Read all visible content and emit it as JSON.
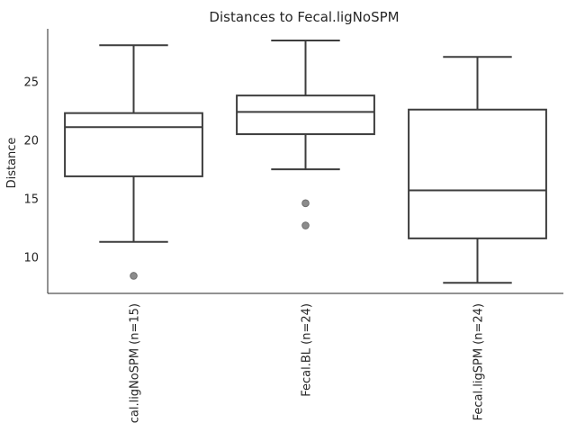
{
  "chart_data": {
    "type": "box",
    "title": "Distances to Fecal.ligNoSPM",
    "xlabel": "",
    "ylabel": "Distance",
    "ylim": [
      6.9,
      29.5
    ],
    "y_ticks": [
      10,
      15,
      20,
      25
    ],
    "grid": false,
    "categories": [
      "cal.ligNoSPM (n=15)",
      "Fecal.BL (n=24)",
      "Fecal.ligSPM (n=24)"
    ],
    "boxes": [
      {
        "whisker_low": 11.3,
        "q1": 16.9,
        "median": 21.1,
        "q3": 22.3,
        "whisker_high": 28.1,
        "outliers": [
          8.4
        ]
      },
      {
        "whisker_low": 17.5,
        "q1": 20.5,
        "median": 22.4,
        "q3": 23.8,
        "whisker_high": 28.5,
        "outliers": [
          14.6,
          12.7
        ]
      },
      {
        "whisker_low": 7.8,
        "q1": 11.6,
        "median": 15.7,
        "q3": 22.6,
        "whisker_high": 27.1,
        "outliers": []
      }
    ]
  }
}
